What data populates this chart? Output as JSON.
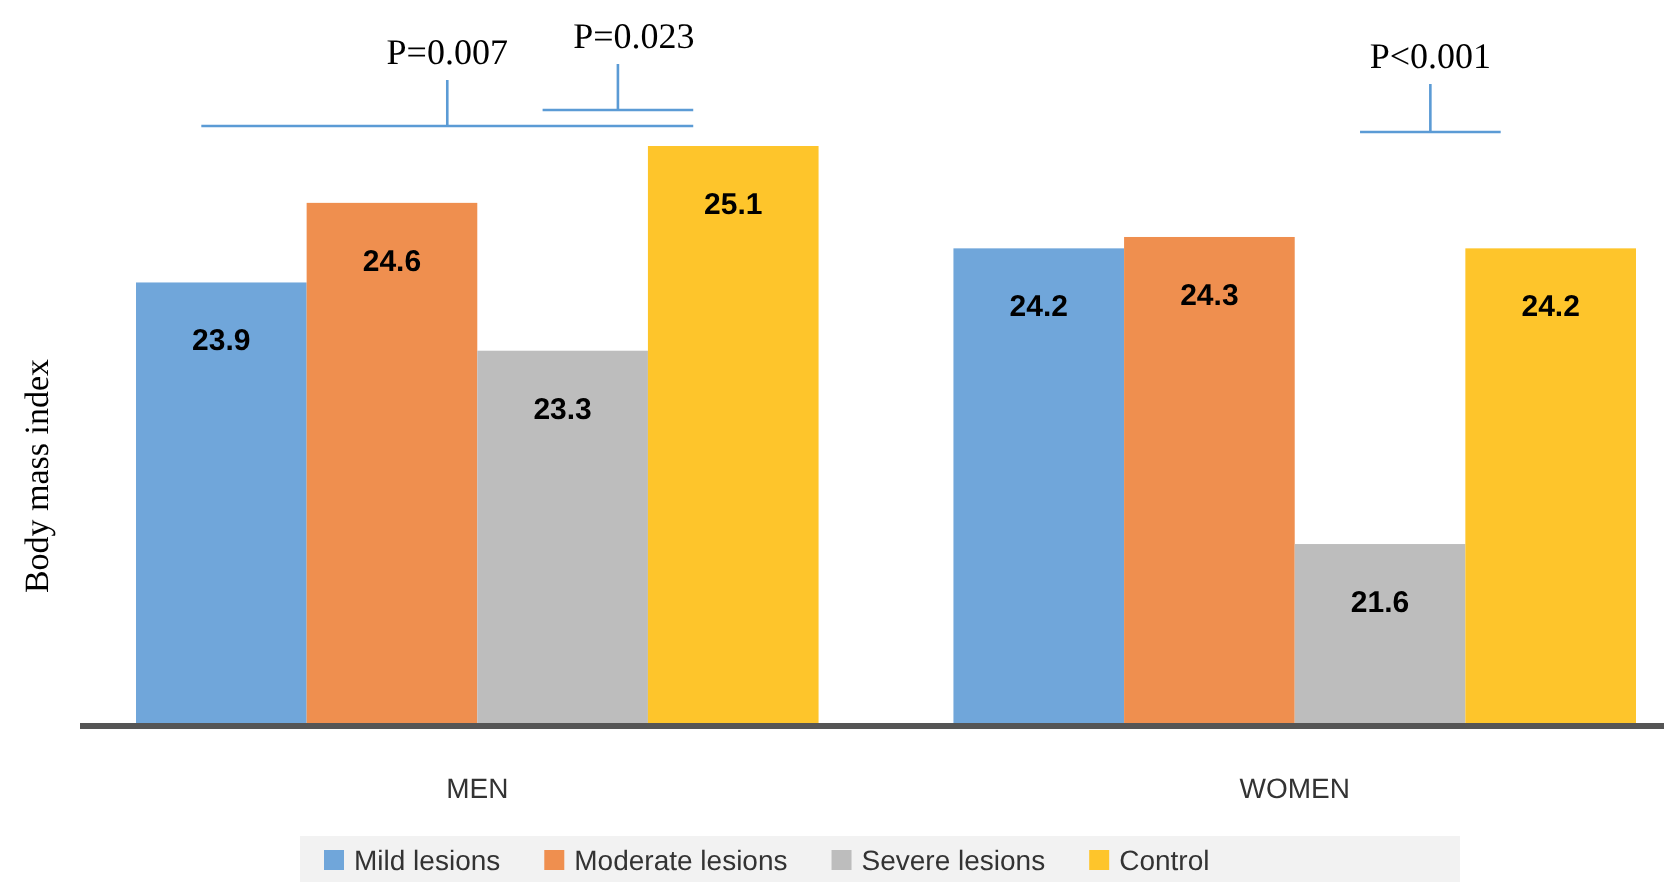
{
  "chart_data": {
    "type": "bar",
    "ylabel": "Body mass index",
    "categories": [
      "MEN",
      "WOMEN"
    ],
    "series": [
      {
        "name": "Mild lesions",
        "color": "#70a6da",
        "values": [
          23.9,
          24.2
        ]
      },
      {
        "name": "Moderate lesions",
        "color": "#ef8f4f",
        "values": [
          24.6,
          24.3
        ]
      },
      {
        "name": "Severe lesions",
        "color": "#bdbdbd",
        "values": [
          23.3,
          21.6
        ]
      },
      {
        "name": "Control",
        "color": "#fec52b",
        "values": [
          25.1,
          24.2
        ]
      }
    ],
    "ylim": [
      20,
      25.1
    ],
    "data_labels": true,
    "legend": "bottom",
    "grid": false,
    "tick_labels": "x",
    "annotations": [
      "P=0.007",
      "P=0.023",
      "P<0.001"
    ]
  }
}
